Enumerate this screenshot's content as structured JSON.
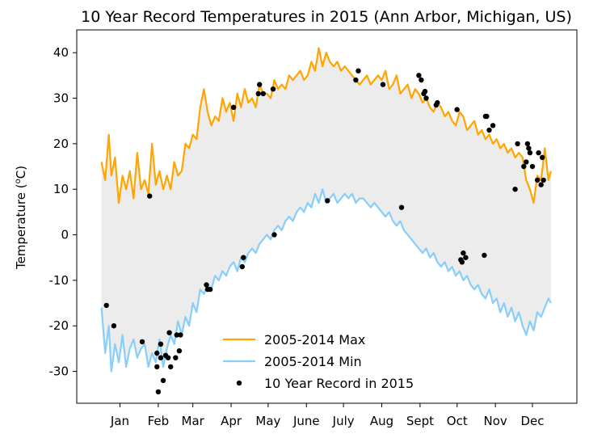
{
  "chart_data": {
    "type": "line",
    "title": "10 Year Record Temperatures in 2015 (Ann Arbor, Michigan, US)",
    "xlabel": "",
    "ylabel": "Temperature (°C)",
    "ylabel_parts": {
      "prefix": "Temperature (",
      "superscript": "o",
      "suffix": "C)"
    },
    "x_unit": "day of year",
    "xlim": [
      -20,
      385
    ],
    "ylim": [
      -37,
      45
    ],
    "yticks": [
      -30,
      -20,
      -10,
      0,
      10,
      20,
      30,
      40
    ],
    "xticks": [
      {
        "label": "Jan",
        "x": 15
      },
      {
        "label": "Feb",
        "x": 46
      },
      {
        "label": "Mar",
        "x": 74
      },
      {
        "label": "Apr",
        "x": 105
      },
      {
        "label": "May",
        "x": 135
      },
      {
        "label": "June",
        "x": 166
      },
      {
        "label": "July",
        "x": 196
      },
      {
        "label": "Aug",
        "x": 227
      },
      {
        "label": "Sept",
        "x": 258
      },
      {
        "label": "Oct",
        "x": 288
      },
      {
        "label": "Nov",
        "x": 319
      },
      {
        "label": "Dec",
        "x": 349
      }
    ],
    "grid": false,
    "legend": "lower-center",
    "fill_between": {
      "upper": "2005-2014 Max",
      "lower": "2005-2014 Min",
      "color": "#ececec"
    },
    "series": [
      {
        "name": "2005-2014 Max",
        "kind": "line",
        "color": "#ffa500",
        "x": [
          0,
          3,
          6,
          8,
          11,
          14,
          17,
          20,
          23,
          26,
          29,
          32,
          35,
          38,
          41,
          44,
          47,
          50,
          53,
          56,
          59,
          62,
          65,
          68,
          71,
          74,
          77,
          80,
          83,
          86,
          89,
          92,
          95,
          98,
          101,
          104,
          107,
          110,
          113,
          116,
          119,
          122,
          125,
          128,
          131,
          134,
          137,
          140,
          143,
          146,
          149,
          152,
          155,
          158,
          161,
          164,
          167,
          170,
          173,
          176,
          179,
          182,
          185,
          188,
          191,
          194,
          197,
          200,
          203,
          206,
          209,
          212,
          215,
          218,
          221,
          224,
          227,
          230,
          233,
          236,
          239,
          242,
          245,
          248,
          251,
          254,
          257,
          260,
          263,
          266,
          269,
          272,
          275,
          278,
          281,
          284,
          287,
          290,
          293,
          296,
          299,
          302,
          305,
          308,
          311,
          314,
          317,
          320,
          323,
          326,
          329,
          332,
          335,
          338,
          341,
          344,
          347,
          350,
          353,
          356,
          359,
          362,
          364
        ],
        "values": [
          16,
          12,
          22,
          13,
          17,
          7,
          13,
          10,
          14,
          8,
          18,
          10,
          12,
          9,
          20,
          11,
          14,
          10,
          13,
          10,
          16,
          13,
          14,
          20,
          19,
          22,
          21,
          28,
          32,
          27,
          24,
          26,
          25,
          30,
          27,
          29,
          25,
          31,
          28,
          32,
          29,
          30,
          28,
          33,
          31,
          31,
          30,
          34,
          32,
          33,
          32,
          35,
          34,
          35,
          36,
          34,
          35,
          38,
          36,
          41,
          37,
          40,
          38,
          37,
          38,
          36,
          37,
          36,
          35,
          34,
          33,
          34,
          35,
          33,
          34,
          35,
          34,
          36,
          32,
          33,
          35,
          31,
          32,
          33,
          30,
          32,
          31,
          29,
          30,
          28,
          27,
          29,
          28,
          26,
          27,
          25,
          24,
          27,
          26,
          23,
          24,
          25,
          22,
          23,
          21,
          22,
          20,
          21,
          19,
          20,
          18,
          19,
          17,
          18,
          17,
          12,
          10,
          7,
          13,
          12,
          19,
          12,
          14
        ]
      },
      {
        "name": "2005-2014 Min",
        "kind": "line",
        "color": "#87cefa",
        "x": [
          0,
          3,
          6,
          8,
          11,
          14,
          17,
          20,
          23,
          26,
          29,
          32,
          35,
          38,
          41,
          44,
          47,
          50,
          53,
          56,
          59,
          62,
          65,
          68,
          71,
          74,
          77,
          80,
          83,
          86,
          89,
          92,
          95,
          98,
          101,
          104,
          107,
          110,
          113,
          116,
          119,
          122,
          125,
          128,
          131,
          134,
          137,
          140,
          143,
          146,
          149,
          152,
          155,
          158,
          161,
          164,
          167,
          170,
          173,
          176,
          179,
          182,
          185,
          188,
          191,
          194,
          197,
          200,
          203,
          206,
          209,
          212,
          215,
          218,
          221,
          224,
          227,
          230,
          233,
          236,
          239,
          242,
          245,
          248,
          251,
          254,
          257,
          260,
          263,
          266,
          269,
          272,
          275,
          278,
          281,
          284,
          287,
          290,
          293,
          296,
          299,
          302,
          305,
          308,
          311,
          314,
          317,
          320,
          323,
          326,
          329,
          332,
          335,
          338,
          341,
          344,
          347,
          350,
          353,
          356,
          359,
          362,
          364
        ],
        "values": [
          -16,
          -26,
          -20,
          -30,
          -24,
          -28,
          -22,
          -29,
          -25,
          -23,
          -27,
          -25,
          -24,
          -29,
          -26,
          -28,
          -23,
          -29,
          -25,
          -22,
          -24,
          -19,
          -22,
          -18,
          -20,
          -15,
          -17,
          -12,
          -13,
          -11,
          -12,
          -9,
          -10,
          -8,
          -9,
          -7,
          -6,
          -8,
          -5,
          -6,
          -4,
          -3,
          -4,
          -2,
          -1,
          0,
          -1,
          1,
          2,
          1,
          3,
          4,
          3,
          5,
          6,
          5,
          7,
          6,
          9,
          7,
          10,
          7,
          8,
          9,
          7,
          8,
          9,
          8,
          9,
          7,
          8,
          8,
          7,
          6,
          7,
          6,
          5,
          4,
          5,
          3,
          2,
          3,
          1,
          0,
          -1,
          -2,
          -3,
          -4,
          -3,
          -5,
          -4,
          -6,
          -7,
          -6,
          -8,
          -7,
          -9,
          -8,
          -10,
          -9,
          -11,
          -12,
          -11,
          -13,
          -14,
          -12,
          -15,
          -14,
          -17,
          -15,
          -18,
          -16,
          -19,
          -17,
          -20,
          -22,
          -19,
          -21,
          -17,
          -18,
          -16,
          -14,
          -15
        ]
      },
      {
        "name": "10 Year Record in 2015",
        "kind": "scatter",
        "color": "#000000",
        "x": [
          4,
          10,
          33,
          39,
          45,
          48,
          45,
          48,
          46,
          50,
          52,
          54,
          55,
          56,
          60,
          61,
          63,
          64,
          85,
          86,
          88,
          107,
          114,
          115,
          127,
          128,
          131,
          139,
          140,
          183,
          206,
          208,
          228,
          243,
          257,
          259,
          261,
          263,
          262,
          271,
          272,
          288,
          291,
          292,
          293,
          295,
          310,
          311,
          312,
          314,
          317,
          337,
          335,
          342,
          344,
          345,
          346,
          347,
          349,
          353,
          354,
          357,
          356,
          358
        ],
        "values": [
          -15.5,
          -20,
          -23.5,
          8.5,
          -26,
          -24,
          -29,
          -27,
          -34.5,
          -32,
          -26.5,
          -27,
          -21.5,
          -29,
          -27,
          -22,
          -25.5,
          -22,
          -11,
          -12,
          -12,
          28,
          -7,
          -5,
          31,
          33,
          31,
          32,
          0,
          7.5,
          34,
          36,
          33,
          6,
          35,
          34,
          31,
          30,
          31.5,
          28.5,
          29,
          27.5,
          -5.5,
          -6,
          -4,
          -5,
          -4.5,
          26,
          26,
          23,
          24,
          20,
          10,
          15,
          16,
          20,
          19,
          18,
          15,
          12,
          18,
          17,
          11,
          12
        ]
      }
    ]
  }
}
